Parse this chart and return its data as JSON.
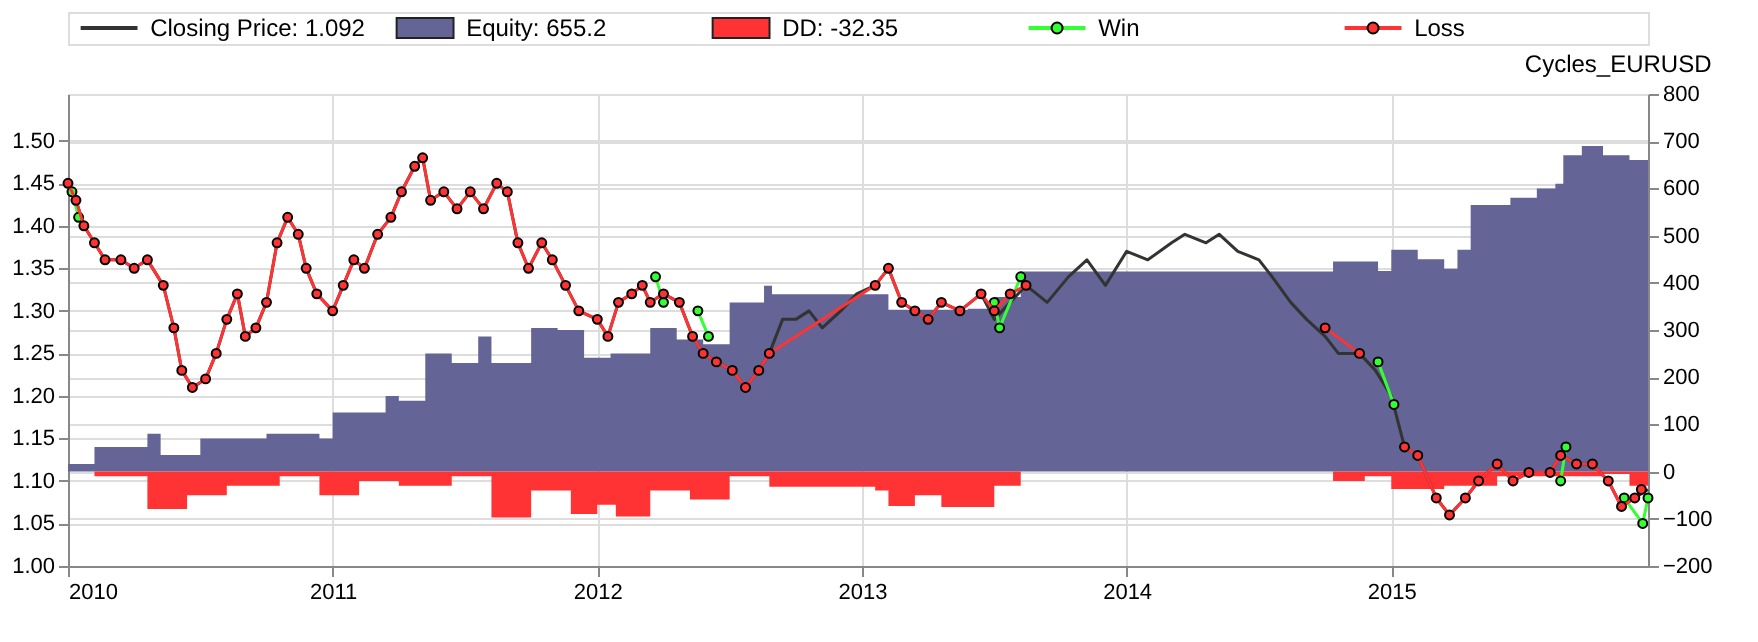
{
  "chart_data": {
    "type": "line",
    "title": "Cycles_EURUSD",
    "xlim": [
      2010,
      2015.97
    ],
    "xticks": [
      2010,
      2011,
      2012,
      2013,
      2014,
      2015
    ],
    "ylim": [
      1.0,
      1.555
    ],
    "yticks": [
      {
        "value": 1.0,
        "label": "1.00"
      },
      {
        "value": 1.05,
        "label": "1.05"
      },
      {
        "value": 1.1,
        "label": "1.10"
      },
      {
        "value": 1.15,
        "label": "1.15"
      },
      {
        "value": 1.2,
        "label": "1.20"
      },
      {
        "value": 1.25,
        "label": "1.25"
      },
      {
        "value": 1.3,
        "label": "1.30"
      },
      {
        "value": 1.35,
        "label": "1.35"
      },
      {
        "value": 1.4,
        "label": "1.40"
      },
      {
        "value": 1.45,
        "label": "1.45"
      },
      {
        "value": 1.5,
        "label": "1.50"
      }
    ],
    "y2lim": [
      -200,
      800
    ],
    "y2ticks": [
      -200,
      -100,
      0,
      100,
      200,
      300,
      400,
      500,
      600,
      700,
      800
    ],
    "grid": true,
    "legend": "top",
    "series": [
      {
        "name": "Closing Price: 1.092",
        "color": "#333333",
        "x": [
          2010.0,
          2010.03,
          2010.06,
          2010.1,
          2010.14,
          2010.2,
          2010.25,
          2010.3,
          2010.36,
          2010.4,
          2010.43,
          2010.47,
          2010.52,
          2010.56,
          2010.6,
          2010.64,
          2010.67,
          2010.71,
          2010.75,
          2010.79,
          2010.83,
          2010.87,
          2010.9,
          2010.94,
          2011.0,
          2011.04,
          2011.08,
          2011.12,
          2011.17,
          2011.22,
          2011.26,
          2011.31,
          2011.34,
          2011.37,
          2011.42,
          2011.47,
          2011.52,
          2011.57,
          2011.62,
          2011.66,
          2011.7,
          2011.74,
          2011.79,
          2011.83,
          2011.88,
          2011.93,
          2012.0,
          2012.04,
          2012.08,
          2012.13,
          2012.17,
          2012.2,
          2012.25,
          2012.31,
          2012.36,
          2012.4,
          2012.45,
          2012.51,
          2012.56,
          2012.61,
          2012.65,
          2012.7,
          2012.75,
          2012.8,
          2012.85,
          2012.92,
          2012.98,
          2013.05,
          2013.1,
          2013.15,
          2013.2,
          2013.25,
          2013.3,
          2013.37,
          2013.45,
          2013.5,
          2013.56,
          2013.62,
          2013.7,
          2013.78,
          2013.85,
          2013.92,
          2014.0,
          2014.08,
          2014.17,
          2014.22,
          2014.3,
          2014.35,
          2014.42,
          2014.5,
          2014.55,
          2014.62,
          2014.68,
          2014.75,
          2014.8,
          2014.88,
          2014.94,
          2015.0,
          2015.05,
          2015.1,
          2015.17,
          2015.22,
          2015.28,
          2015.33,
          2015.4,
          2015.46,
          2015.52,
          2015.6,
          2015.64,
          2015.7,
          2015.76,
          2015.82,
          2015.87,
          2015.92,
          2015.97
        ],
        "values": [
          1.45,
          1.43,
          1.4,
          1.38,
          1.36,
          1.36,
          1.35,
          1.36,
          1.33,
          1.28,
          1.23,
          1.21,
          1.22,
          1.25,
          1.29,
          1.32,
          1.27,
          1.28,
          1.31,
          1.38,
          1.41,
          1.39,
          1.35,
          1.32,
          1.3,
          1.33,
          1.36,
          1.35,
          1.39,
          1.41,
          1.44,
          1.47,
          1.48,
          1.43,
          1.44,
          1.42,
          1.44,
          1.42,
          1.45,
          1.44,
          1.38,
          1.35,
          1.38,
          1.36,
          1.33,
          1.3,
          1.29,
          1.27,
          1.31,
          1.32,
          1.33,
          1.31,
          1.32,
          1.31,
          1.27,
          1.25,
          1.24,
          1.23,
          1.21,
          1.23,
          1.25,
          1.29,
          1.29,
          1.3,
          1.28,
          1.3,
          1.32,
          1.33,
          1.35,
          1.31,
          1.3,
          1.29,
          1.31,
          1.3,
          1.32,
          1.29,
          1.31,
          1.33,
          1.31,
          1.34,
          1.36,
          1.33,
          1.37,
          1.36,
          1.38,
          1.39,
          1.38,
          1.39,
          1.37,
          1.36,
          1.34,
          1.31,
          1.29,
          1.27,
          1.25,
          1.25,
          1.23,
          1.2,
          1.14,
          1.13,
          1.08,
          1.06,
          1.08,
          1.1,
          1.12,
          1.1,
          1.11,
          1.11,
          1.13,
          1.12,
          1.12,
          1.1,
          1.07,
          1.08,
          1.09
        ]
      },
      {
        "name": "Equity: 655.2",
        "type": "area",
        "axis": "y2",
        "color": "#646496",
        "x": [
          2010.0,
          2010.1,
          2010.3,
          2010.35,
          2010.5,
          2010.75,
          2010.95,
          2011.0,
          2011.2,
          2011.25,
          2011.35,
          2011.45,
          2011.55,
          2011.6,
          2011.75,
          2011.85,
          2011.95,
          2012.05,
          2012.2,
          2012.3,
          2012.4,
          2012.5,
          2012.63,
          2012.66,
          2013.0,
          2013.1,
          2013.4,
          2013.5,
          2013.6,
          2014.75,
          2014.78,
          2014.95,
          2015.0,
          2015.1,
          2015.2,
          2015.25,
          2015.3,
          2015.45,
          2015.55,
          2015.62,
          2015.65,
          2015.72,
          2015.8,
          2015.9,
          2015.97
        ],
        "values": [
          16,
          52,
          80,
          35,
          70,
          80,
          70,
          125,
          160,
          150,
          250,
          230,
          286,
          230,
          304,
          300,
          241,
          250,
          304,
          280,
          270,
          358,
          394,
          376,
          376,
          343,
          345,
          370,
          424,
          424,
          445,
          425,
          470,
          450,
          430,
          470,
          565,
          580,
          600,
          610,
          670,
          690,
          670,
          660,
          655
        ]
      },
      {
        "name": "DD: -32.35",
        "type": "area",
        "axis": "y2",
        "color": "#ff3333",
        "x": [
          2010.0,
          2010.1,
          2010.3,
          2010.45,
          2010.6,
          2010.8,
          2010.95,
          2011.1,
          2011.25,
          2011.45,
          2011.6,
          2011.75,
          2011.9,
          2012.0,
          2012.07,
          2012.2,
          2012.35,
          2012.5,
          2012.65,
          2013.0,
          2013.05,
          2013.1,
          2013.2,
          2013.3,
          2013.45,
          2013.5,
          2013.6,
          2014.78,
          2014.9,
          2015.0,
          2015.2,
          2015.4,
          2015.6,
          2015.8,
          2015.9,
          2015.97
        ],
        "values": [
          0,
          -10,
          -79,
          -50,
          -30,
          -10,
          -50,
          -20,
          -30,
          -10,
          -97,
          -40,
          -90,
          -70,
          -95,
          -40,
          -59,
          -10,
          -32,
          -32,
          -40,
          -73,
          -50,
          -75,
          -75,
          -30,
          0,
          -20,
          -10,
          -37,
          -30,
          -10,
          -10,
          -5,
          -30,
          -32
        ]
      },
      {
        "name": "Win",
        "marker": "circle",
        "color": "#33ff33",
        "x": [
          2010.015,
          2010.04,
          2010.1,
          2012.22,
          2012.25,
          2012.3,
          2012.38,
          2012.42,
          2012.5,
          2013.5,
          2013.52,
          2013.6,
          2014.8,
          2014.95,
          2015.01,
          2015.1,
          2015.64,
          2015.66,
          2015.75,
          2015.88,
          2015.95,
          2015.97
        ],
        "values": [
          1.44,
          1.41,
          null,
          1.34,
          1.31,
          null,
          1.3,
          1.27,
          null,
          1.31,
          1.28,
          1.34,
          null,
          1.24,
          1.19,
          null,
          1.1,
          1.14,
          null,
          1.08,
          1.05,
          1.08
        ]
      },
      {
        "name": "Loss",
        "marker": "circle",
        "color": "#ff3333",
        "x": [
          2010.0,
          2010.03,
          2010.06,
          2010.1,
          2010.14,
          2010.2,
          2010.25,
          2010.3,
          2010.36,
          2010.4,
          2010.43,
          2010.47,
          2010.52,
          2010.56,
          2010.6,
          2010.64,
          2010.67,
          2010.71,
          2010.75,
          2010.79,
          2010.83,
          2010.87,
          2010.9,
          2010.94,
          2011.0,
          2011.04,
          2011.08,
          2011.12,
          2011.17,
          2011.22,
          2011.26,
          2011.31,
          2011.34,
          2011.37,
          2011.42,
          2011.47,
          2011.52,
          2011.57,
          2011.62,
          2011.66,
          2011.7,
          2011.74,
          2011.79,
          2011.83,
          2011.88,
          2011.93,
          2012.0,
          2012.04,
          2012.08,
          2012.13,
          2012.17,
          2012.2,
          2012.25,
          2012.31,
          2012.36,
          2012.4,
          2012.45,
          2012.51,
          2012.56,
          2012.61,
          2012.65,
          2013.05,
          2013.1,
          2013.15,
          2013.2,
          2013.25,
          2013.3,
          2013.37,
          2013.45,
          2013.5,
          2013.56,
          2013.62,
          2013.7,
          2014.75,
          2014.88,
          2015.0,
          2015.05,
          2015.1,
          2015.17,
          2015.22,
          2015.28,
          2015.33,
          2015.4,
          2015.46,
          2015.52,
          2015.6,
          2015.64,
          2015.7,
          2015.76,
          2015.82,
          2015.87,
          2015.92,
          2015.945
        ],
        "values": [
          1.45,
          1.43,
          1.4,
          1.38,
          1.36,
          1.36,
          1.35,
          1.36,
          1.33,
          1.28,
          1.23,
          1.21,
          1.22,
          1.25,
          1.29,
          1.32,
          1.27,
          1.28,
          1.31,
          1.38,
          1.41,
          1.39,
          1.35,
          1.32,
          1.3,
          1.33,
          1.36,
          1.35,
          1.39,
          1.41,
          1.44,
          1.47,
          1.48,
          1.43,
          1.44,
          1.42,
          1.44,
          1.42,
          1.45,
          1.44,
          1.38,
          1.35,
          1.38,
          1.36,
          1.33,
          1.3,
          1.29,
          1.27,
          1.31,
          1.32,
          1.33,
          1.31,
          1.32,
          1.31,
          1.27,
          1.25,
          1.24,
          1.23,
          1.21,
          1.23,
          1.25,
          1.33,
          1.35,
          1.31,
          1.3,
          1.29,
          1.31,
          1.3,
          1.32,
          1.3,
          1.32,
          1.33,
          null,
          1.28,
          1.25,
          null,
          1.14,
          1.13,
          1.08,
          1.06,
          1.08,
          1.1,
          1.12,
          1.1,
          1.11,
          1.11,
          1.13,
          1.12,
          1.12,
          1.1,
          1.07,
          1.08,
          1.09
        ]
      }
    ]
  }
}
